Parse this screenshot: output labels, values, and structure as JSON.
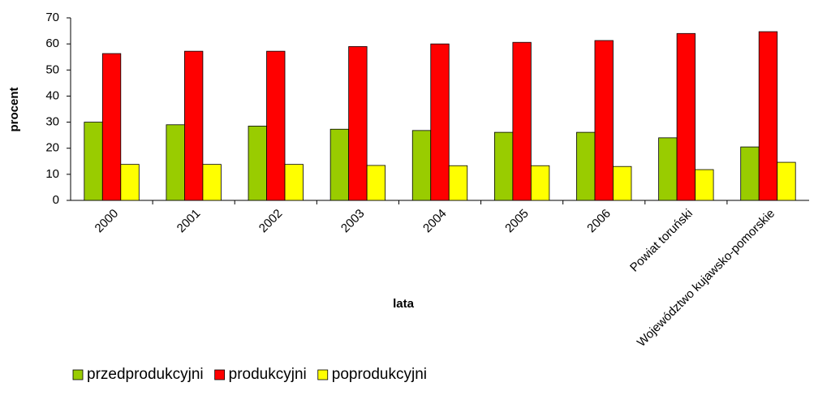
{
  "chart_data": {
    "type": "bar",
    "categories": [
      "2000",
      "2001",
      "2002",
      "2003",
      "2004",
      "2005",
      "2006",
      "Powiat toruński",
      "Województwo kujawsko-pomorskie"
    ],
    "series": [
      {
        "name": "przedprodukcyjni",
        "color": "#99cc00",
        "values": [
          30,
          29,
          28.5,
          27.3,
          26.8,
          26.1,
          26.1,
          24,
          20.5
        ]
      },
      {
        "name": "produkcyjni",
        "color": "#ff0000",
        "values": [
          56.3,
          57.2,
          57.2,
          59,
          60,
          60.6,
          61.3,
          64,
          64.7
        ]
      },
      {
        "name": "poprodukcyjni",
        "color": "#ffff00",
        "values": [
          13.8,
          13.8,
          13.8,
          13.4,
          13.3,
          13.3,
          13,
          11.8,
          14.6
        ]
      }
    ],
    "x_label": "lata",
    "y_label": "procent",
    "ylim": [
      0,
      70
    ],
    "yticks": [
      0,
      10,
      20,
      30,
      40,
      50,
      60,
      70
    ],
    "grid": false,
    "legend": "bottom"
  }
}
